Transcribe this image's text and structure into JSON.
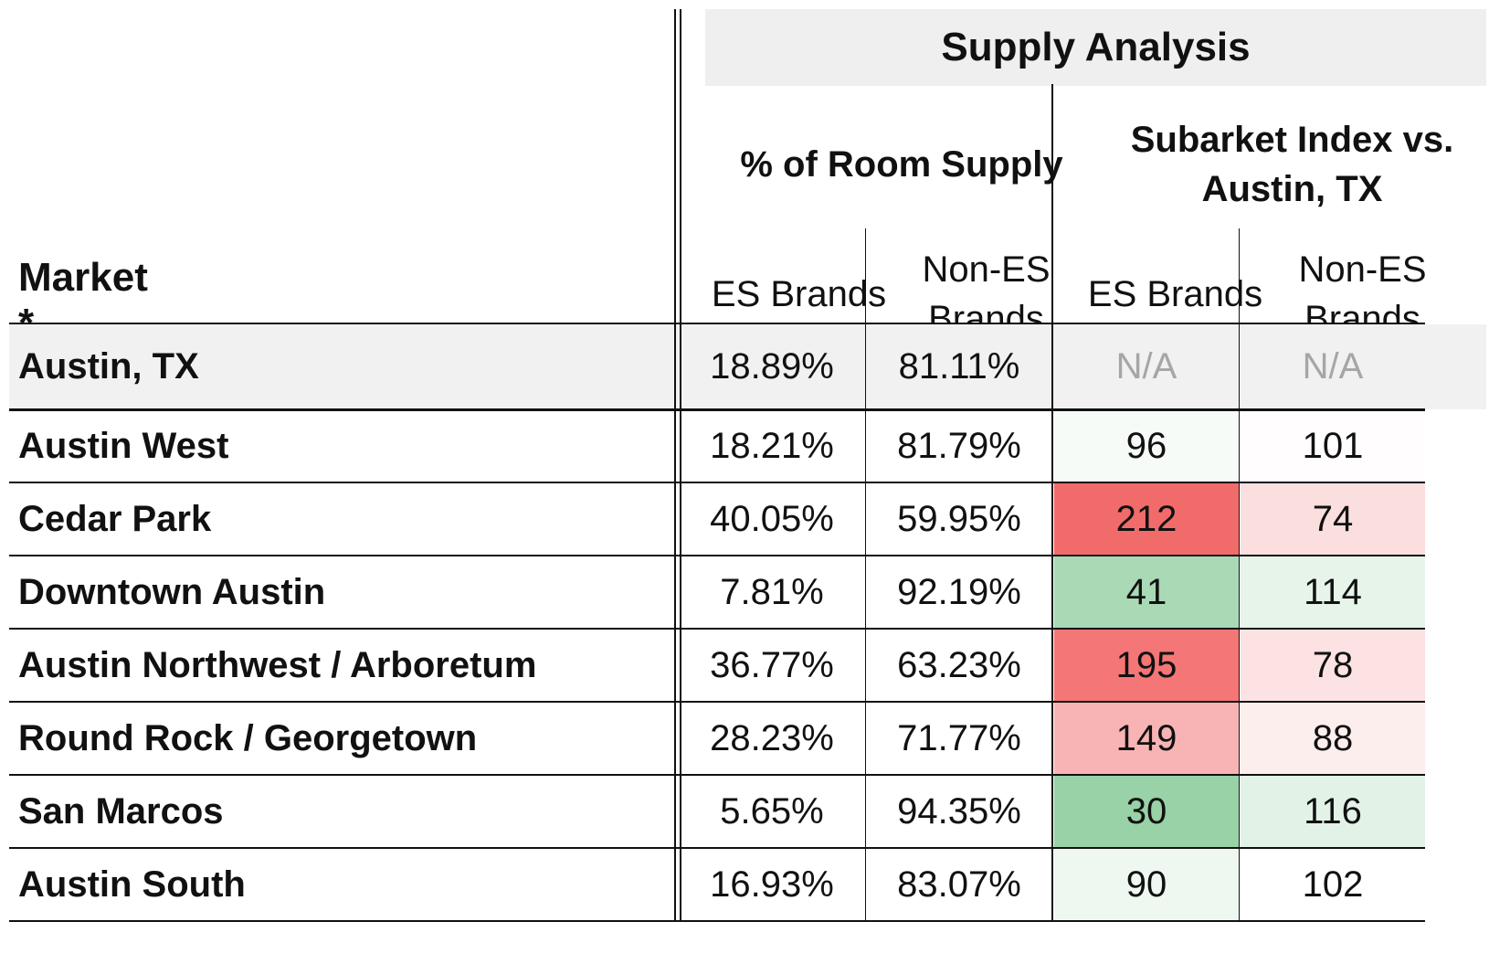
{
  "chart_data": {
    "type": "table",
    "title": "Supply Analysis",
    "row_header": "Market *",
    "column_groups": [
      {
        "label": "% of Room Supply",
        "columns": [
          "ES Brands",
          "Non-ES Brands"
        ]
      },
      {
        "label": "Subarket Index vs. Austin, TX",
        "columns": [
          "ES Brands",
          "Non-ES Brands"
        ]
      }
    ],
    "rows": [
      {
        "market": "Austin, TX",
        "es_pct": "18.89%",
        "nones_pct": "81.11%",
        "es_index": "N/A",
        "nones_index": "N/A",
        "row_bg": "#f1f1f1",
        "es_index_bg": "#f1f1f1",
        "nones_index_bg": "#f1f1f1",
        "index_color": "#a6a6a6"
      },
      {
        "market": "Austin West",
        "es_pct": "18.21%",
        "nones_pct": "81.79%",
        "es_index": "96",
        "nones_index": "101",
        "row_bg": "#ffffff",
        "es_index_bg": "#f7fbf8",
        "nones_index_bg": "#fffdfd",
        "index_color": "#111111"
      },
      {
        "market": "Cedar Park",
        "es_pct": "40.05%",
        "nones_pct": "59.95%",
        "es_index": "212",
        "nones_index": "74",
        "row_bg": "#ffffff",
        "es_index_bg": "#f26b6b",
        "nones_index_bg": "#fbdede",
        "index_color": "#111111"
      },
      {
        "market": "Downtown Austin",
        "es_pct": "7.81%",
        "nones_pct": "92.19%",
        "es_index": "41",
        "nones_index": "114",
        "row_bg": "#ffffff",
        "es_index_bg": "#a9d9b5",
        "nones_index_bg": "#e6f4ea",
        "index_color": "#111111"
      },
      {
        "market": "Austin Northwest / Arboretum",
        "es_pct": "36.77%",
        "nones_pct": "63.23%",
        "es_index": "195",
        "nones_index": "78",
        "row_bg": "#ffffff",
        "es_index_bg": "#f47676",
        "nones_index_bg": "#fce2e2",
        "index_color": "#111111"
      },
      {
        "market": "Round Rock / Georgetown",
        "es_pct": "28.23%",
        "nones_pct": "71.77%",
        "es_index": "149",
        "nones_index": "88",
        "row_bg": "#ffffff",
        "es_index_bg": "#f8b4b4",
        "nones_index_bg": "#fdeeee",
        "index_color": "#111111"
      },
      {
        "market": "San Marcos",
        "es_pct": "5.65%",
        "nones_pct": "94.35%",
        "es_index": "30",
        "nones_index": "116",
        "row_bg": "#ffffff",
        "es_index_bg": "#98d2a6",
        "nones_index_bg": "#e3f2e7",
        "index_color": "#111111"
      },
      {
        "market": "Austin South",
        "es_pct": "16.93%",
        "nones_pct": "83.07%",
        "es_index": "90",
        "nones_index": "102",
        "row_bg": "#ffffff",
        "es_index_bg": "#eef8f1",
        "nones_index_bg": "#ffffff",
        "index_color": "#111111"
      }
    ]
  }
}
